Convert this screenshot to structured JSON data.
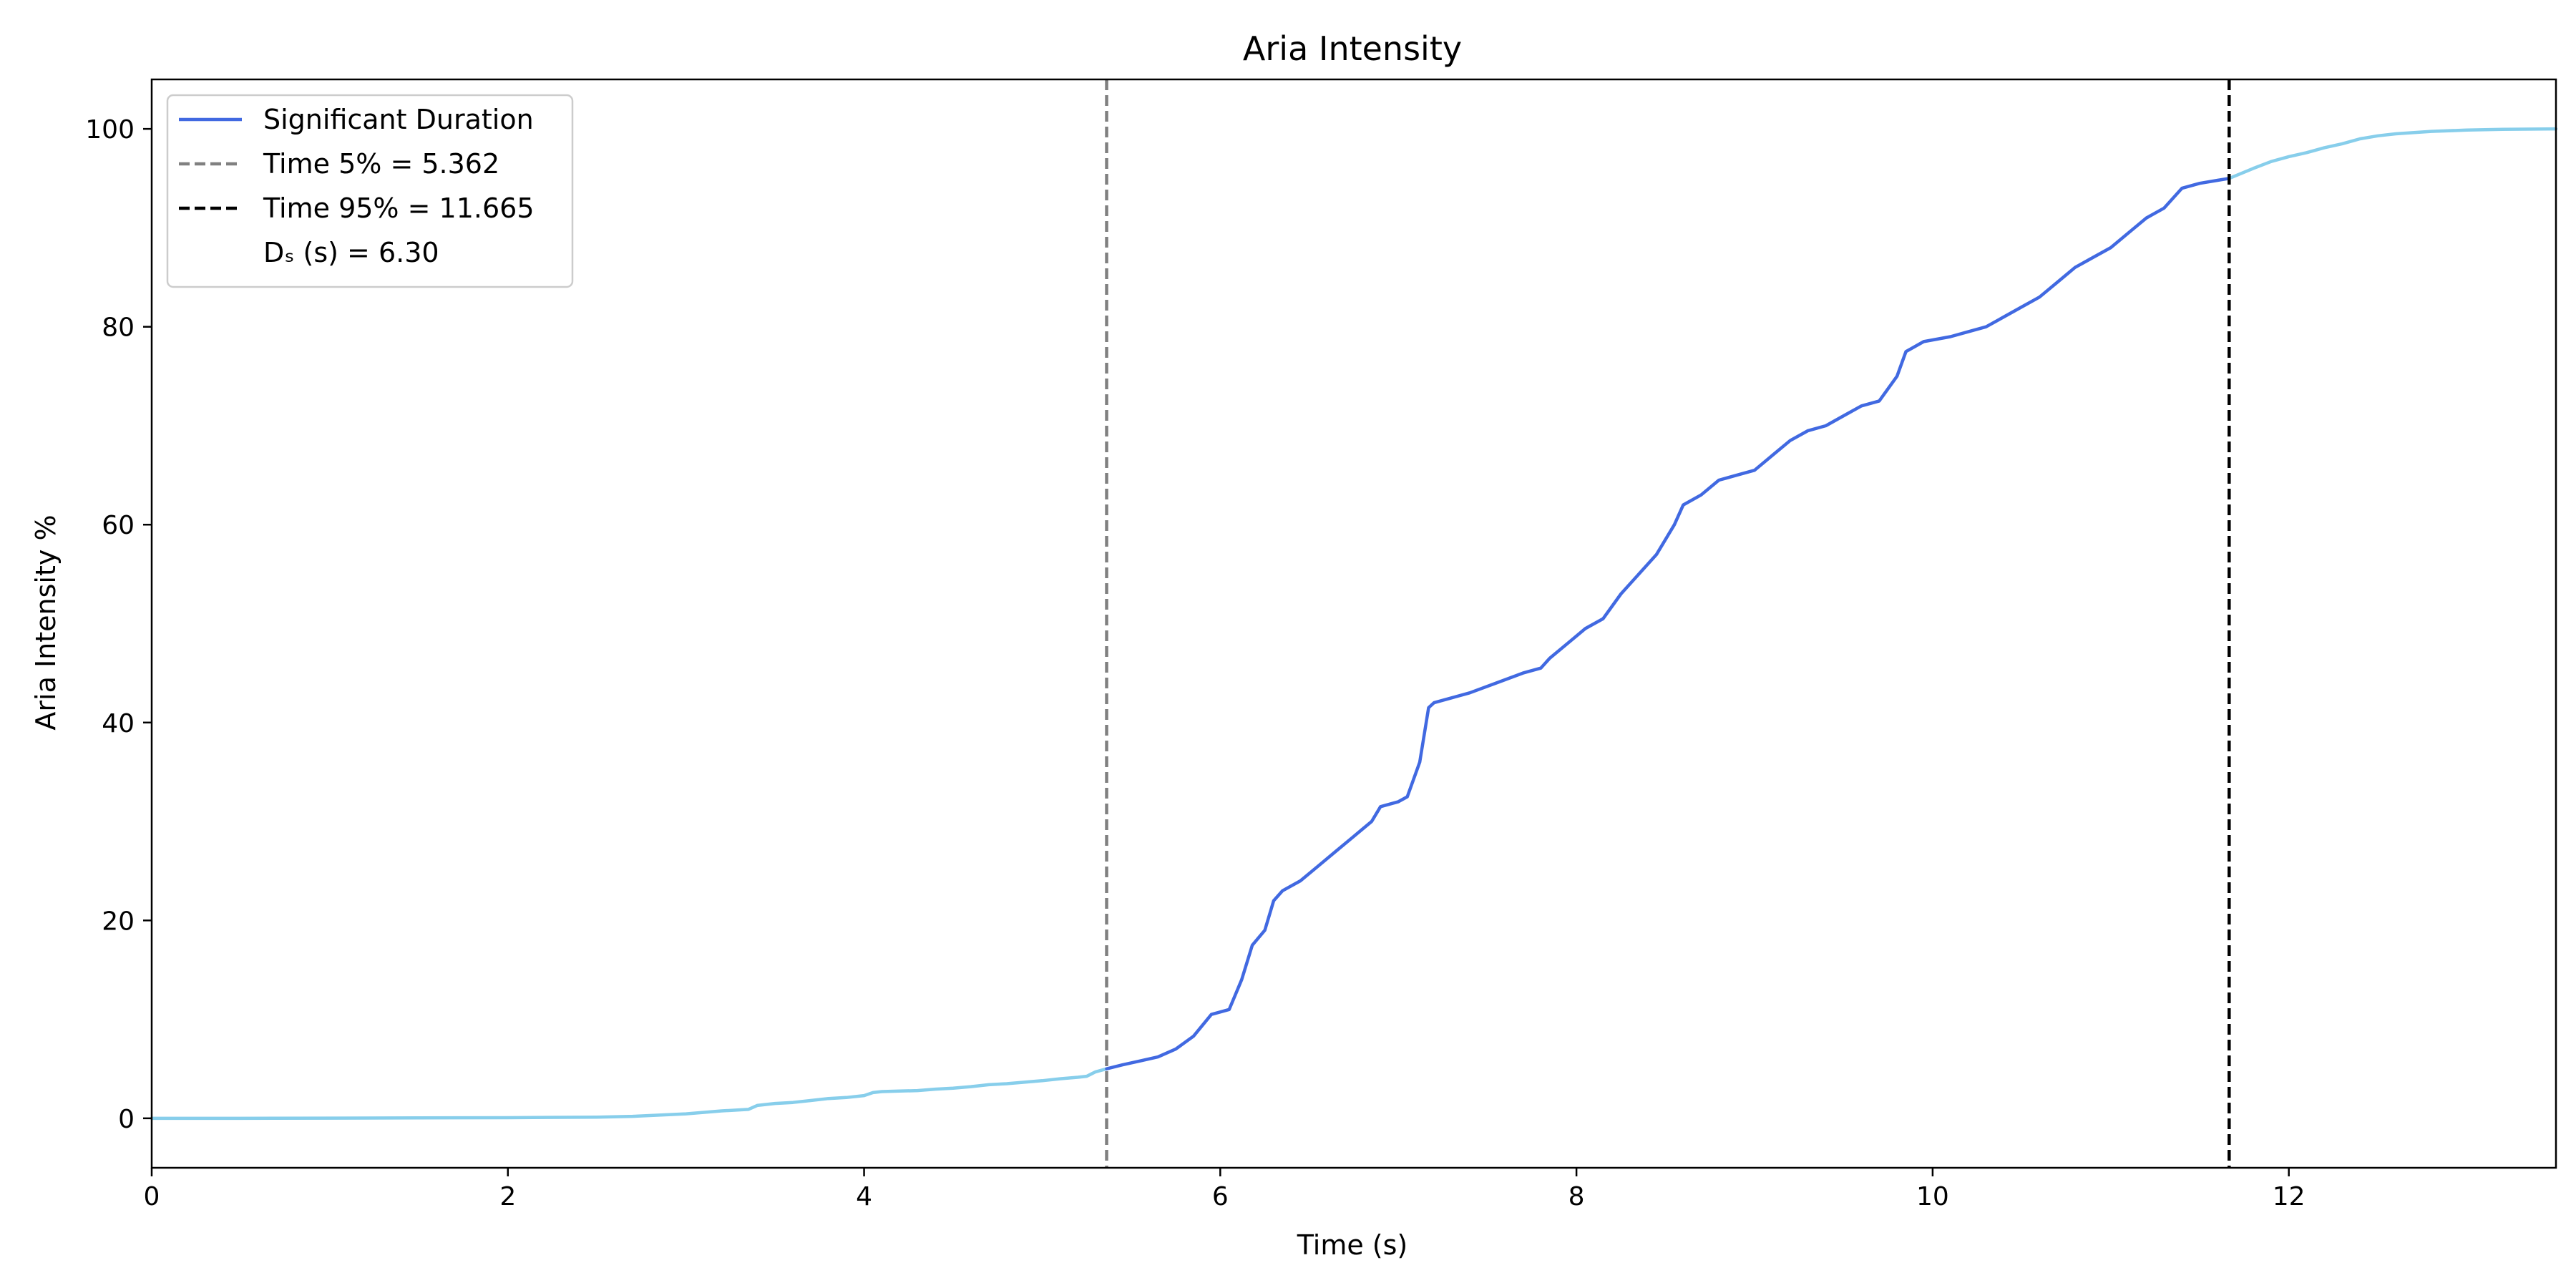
{
  "chart_data": {
    "type": "line",
    "title": "Aria Intensity",
    "xlabel": "Time (s)",
    "ylabel": "Aria Intensity %",
    "xlim": [
      0,
      13.5
    ],
    "ylim": [
      -5,
      105
    ],
    "xticks": [
      0,
      2,
      4,
      6,
      8,
      10,
      12
    ],
    "yticks": [
      0,
      20,
      40,
      60,
      80,
      100
    ],
    "grid": false,
    "legend_position": "top-left",
    "legend": [
      {
        "label": "Significant Duration",
        "style": "solid",
        "color": "#4169e1"
      },
      {
        "label": "Time 5% = 5.362",
        "style": "dashed",
        "color": "#808080"
      },
      {
        "label": "Time 95% = 11.665",
        "style": "dashed",
        "color": "#000000"
      },
      {
        "label": "Dₛ (s) = 6.30",
        "style": "none",
        "color": "none"
      }
    ],
    "vlines": [
      {
        "x": 5.362,
        "color": "#808080",
        "style": "dashed"
      },
      {
        "x": 11.665,
        "color": "#000000",
        "style": "dashed"
      }
    ],
    "series": [
      {
        "color": "#87ceeb",
        "x": [
          0,
          0.5,
          1,
          1.5,
          2,
          2.5,
          2.7,
          3.0,
          3.2,
          3.35,
          3.4,
          3.5,
          3.6,
          3.7,
          3.8,
          3.9,
          4.0,
          4.05,
          4.1,
          4.2,
          4.3,
          4.4,
          4.5,
          4.6,
          4.7,
          4.8,
          4.9,
          5.0,
          5.1,
          5.2,
          5.25,
          5.3,
          5.362
        ],
        "y": [
          0,
          0,
          0.02,
          0.04,
          0.06,
          0.12,
          0.2,
          0.45,
          0.75,
          0.9,
          1.3,
          1.5,
          1.6,
          1.8,
          2.0,
          2.1,
          2.3,
          2.6,
          2.7,
          2.75,
          2.8,
          2.95,
          3.05,
          3.2,
          3.4,
          3.5,
          3.65,
          3.8,
          4.0,
          4.15,
          4.25,
          4.7,
          5.0
        ]
      },
      {
        "name": "Significant Duration",
        "color": "#4169e1",
        "x": [
          5.362,
          5.45,
          5.55,
          5.65,
          5.75,
          5.85,
          5.95,
          6.05,
          6.12,
          6.18,
          6.25,
          6.3,
          6.35,
          6.45,
          6.55,
          6.65,
          6.75,
          6.85,
          6.9,
          7.0,
          7.05,
          7.12,
          7.17,
          7.2,
          7.3,
          7.4,
          7.55,
          7.7,
          7.8,
          7.85,
          7.95,
          8.05,
          8.15,
          8.25,
          8.35,
          8.45,
          8.55,
          8.6,
          8.7,
          8.8,
          8.9,
          9.0,
          9.1,
          9.2,
          9.3,
          9.4,
          9.5,
          9.6,
          9.7,
          9.8,
          9.85,
          9.95,
          10.1,
          10.2,
          10.3,
          10.4,
          10.5,
          10.6,
          10.7,
          10.8,
          10.9,
          11.0,
          11.1,
          11.2,
          11.25,
          11.3,
          11.4,
          11.5,
          11.6,
          11.665
        ],
        "y": [
          5.0,
          5.4,
          5.8,
          6.2,
          7.0,
          8.3,
          10.5,
          11.0,
          14.0,
          17.5,
          19.0,
          22.0,
          23.0,
          24.0,
          25.5,
          27.0,
          28.5,
          30.0,
          31.5,
          32.0,
          32.5,
          36.0,
          41.5,
          42.0,
          42.5,
          43.0,
          44.0,
          45.0,
          45.5,
          46.5,
          48.0,
          49.5,
          50.5,
          53.0,
          55.0,
          57.0,
          60.0,
          62.0,
          63.0,
          64.5,
          65.0,
          65.5,
          67.0,
          68.5,
          69.5,
          70.0,
          71.0,
          72.0,
          72.5,
          75.0,
          77.5,
          78.5,
          79.0,
          79.5,
          80.0,
          81.0,
          82.0,
          83.0,
          84.5,
          86.0,
          87.0,
          88.0,
          89.5,
          91.0,
          91.5,
          92.0,
          94.0,
          94.5,
          94.8,
          95.0
        ]
      },
      {
        "color": "#87ceeb",
        "x": [
          11.665,
          11.8,
          11.9,
          12.0,
          12.1,
          12.2,
          12.3,
          12.4,
          12.5,
          12.6,
          12.8,
          13.0,
          13.2,
          13.5
        ],
        "y": [
          95.0,
          96.0,
          96.7,
          97.2,
          97.6,
          98.1,
          98.5,
          99.0,
          99.3,
          99.5,
          99.75,
          99.88,
          99.95,
          100.0
        ]
      }
    ]
  }
}
